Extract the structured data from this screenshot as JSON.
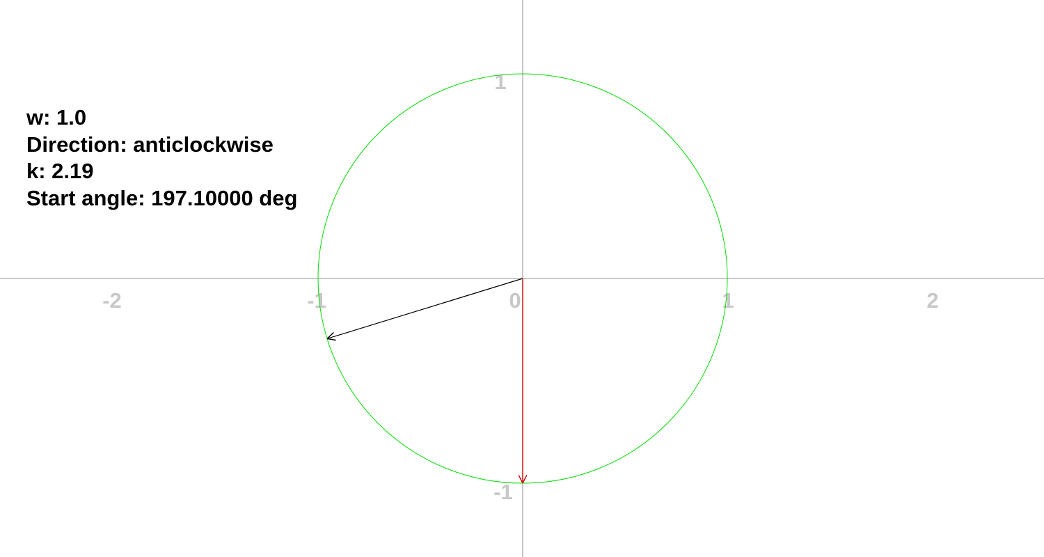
{
  "info": {
    "w": "w: 1.0",
    "direction": "Direction: anticlockwise",
    "k": "k: 2.19",
    "start_angle": "Start angle: 197.10000 deg"
  },
  "axes": {
    "x_ticks": [
      "-2",
      "-1",
      "0",
      "1",
      "2"
    ],
    "y_ticks": [
      "1",
      "-1"
    ],
    "axis_color": "#c8c8c8"
  },
  "circle": {
    "radius": 1,
    "color": "#00dd00"
  },
  "vectors": {
    "rotating": {
      "angle_deg": 197.1,
      "length": 1,
      "color": "#000000"
    },
    "fixed": {
      "angle_deg": 270,
      "length": 1,
      "color": "#dd0000"
    }
  }
}
